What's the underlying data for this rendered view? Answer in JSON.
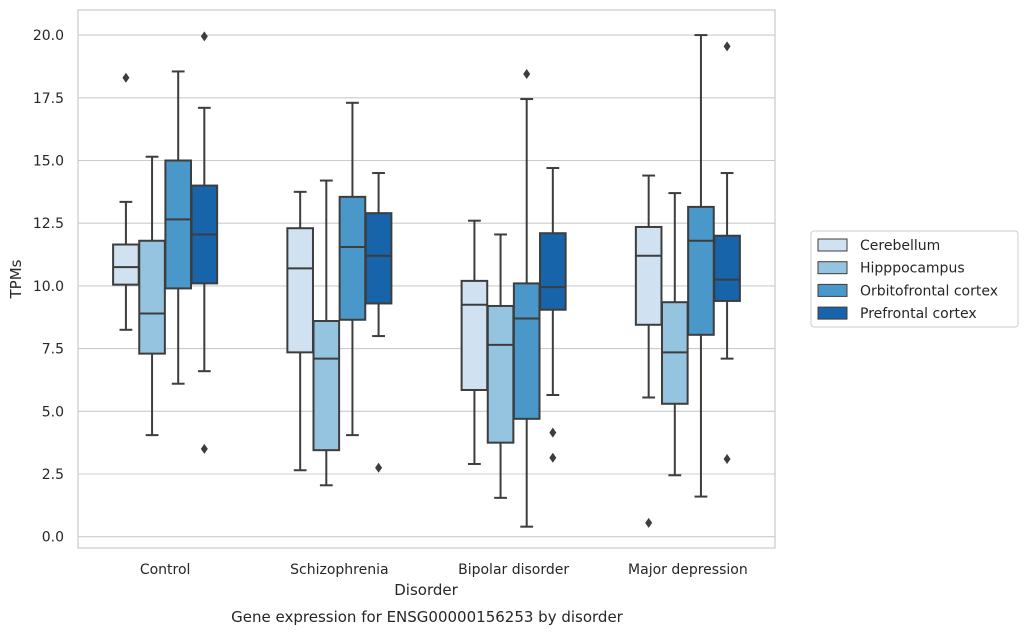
{
  "chart_data": {
    "type": "box",
    "caption": "Gene expression for ENSG00000156253 by disorder",
    "xlabel": "Disorder",
    "ylabel": "TPMs",
    "ylim": [
      -0.45,
      21.0
    ],
    "yticks": [
      "0.0",
      "2.5",
      "5.0",
      "7.5",
      "10.0",
      "12.5",
      "15.0",
      "17.5",
      "20.0"
    ],
    "grid": true,
    "legend_position": "right",
    "categories": [
      "Control",
      "Schizophrenia",
      "Bipolar disorder",
      "Major depression"
    ],
    "series": [
      {
        "name": "Cerebellum",
        "color": "#d0e1f2",
        "boxes": [
          {
            "whisker_low": 8.25,
            "q1": 10.05,
            "median": 10.75,
            "q3": 11.65,
            "whisker_high": 13.35,
            "outliers": [
              18.3
            ]
          },
          {
            "whisker_low": 2.65,
            "q1": 7.35,
            "median": 10.7,
            "q3": 12.3,
            "whisker_high": 13.75,
            "outliers": []
          },
          {
            "whisker_low": 2.9,
            "q1": 5.85,
            "median": 9.25,
            "q3": 10.2,
            "whisker_high": 12.6,
            "outliers": []
          },
          {
            "whisker_low": 5.55,
            "q1": 8.45,
            "median": 11.2,
            "q3": 12.35,
            "whisker_high": 14.4,
            "outliers": [
              0.55
            ]
          }
        ]
      },
      {
        "name": "Hipppocampus",
        "color": "#94c4df",
        "boxes": [
          {
            "whisker_low": 4.05,
            "q1": 7.3,
            "median": 8.9,
            "q3": 11.8,
            "whisker_high": 15.15,
            "outliers": []
          },
          {
            "whisker_low": 2.05,
            "q1": 3.45,
            "median": 7.1,
            "q3": 8.6,
            "whisker_high": 14.2,
            "outliers": []
          },
          {
            "whisker_low": 1.55,
            "q1": 3.75,
            "median": 7.65,
            "q3": 9.2,
            "whisker_high": 12.05,
            "outliers": []
          },
          {
            "whisker_low": 2.45,
            "q1": 5.3,
            "median": 7.35,
            "q3": 9.35,
            "whisker_high": 13.7,
            "outliers": []
          }
        ]
      },
      {
        "name": "Orbitofrontal cortex",
        "color": "#4a98c9",
        "boxes": [
          {
            "whisker_low": 6.1,
            "q1": 9.9,
            "median": 12.65,
            "q3": 15.0,
            "whisker_high": 18.55,
            "outliers": []
          },
          {
            "whisker_low": 4.05,
            "q1": 8.65,
            "median": 11.55,
            "q3": 13.55,
            "whisker_high": 17.3,
            "outliers": []
          },
          {
            "whisker_low": 0.4,
            "q1": 4.7,
            "median": 8.7,
            "q3": 10.1,
            "whisker_high": 17.45,
            "outliers": [
              18.45
            ]
          },
          {
            "whisker_low": 1.6,
            "q1": 8.05,
            "median": 11.8,
            "q3": 13.15,
            "whisker_high": 20.0,
            "outliers": []
          }
        ]
      },
      {
        "name": "Prefrontal cortex",
        "color": "#1764ab",
        "boxes": [
          {
            "whisker_low": 6.6,
            "q1": 10.1,
            "median": 12.05,
            "q3": 14.0,
            "whisker_high": 17.1,
            "outliers": [
              19.95,
              3.5
            ]
          },
          {
            "whisker_low": 8.0,
            "q1": 9.3,
            "median": 11.2,
            "q3": 12.9,
            "whisker_high": 14.5,
            "outliers": [
              2.75
            ]
          },
          {
            "whisker_low": 5.65,
            "q1": 9.05,
            "median": 9.95,
            "q3": 12.1,
            "whisker_high": 14.7,
            "outliers": [
              4.15,
              3.15
            ]
          },
          {
            "whisker_low": 7.1,
            "q1": 9.4,
            "median": 10.25,
            "q3": 12.0,
            "whisker_high": 14.5,
            "outliers": [
              19.55,
              3.1
            ]
          }
        ]
      }
    ]
  }
}
